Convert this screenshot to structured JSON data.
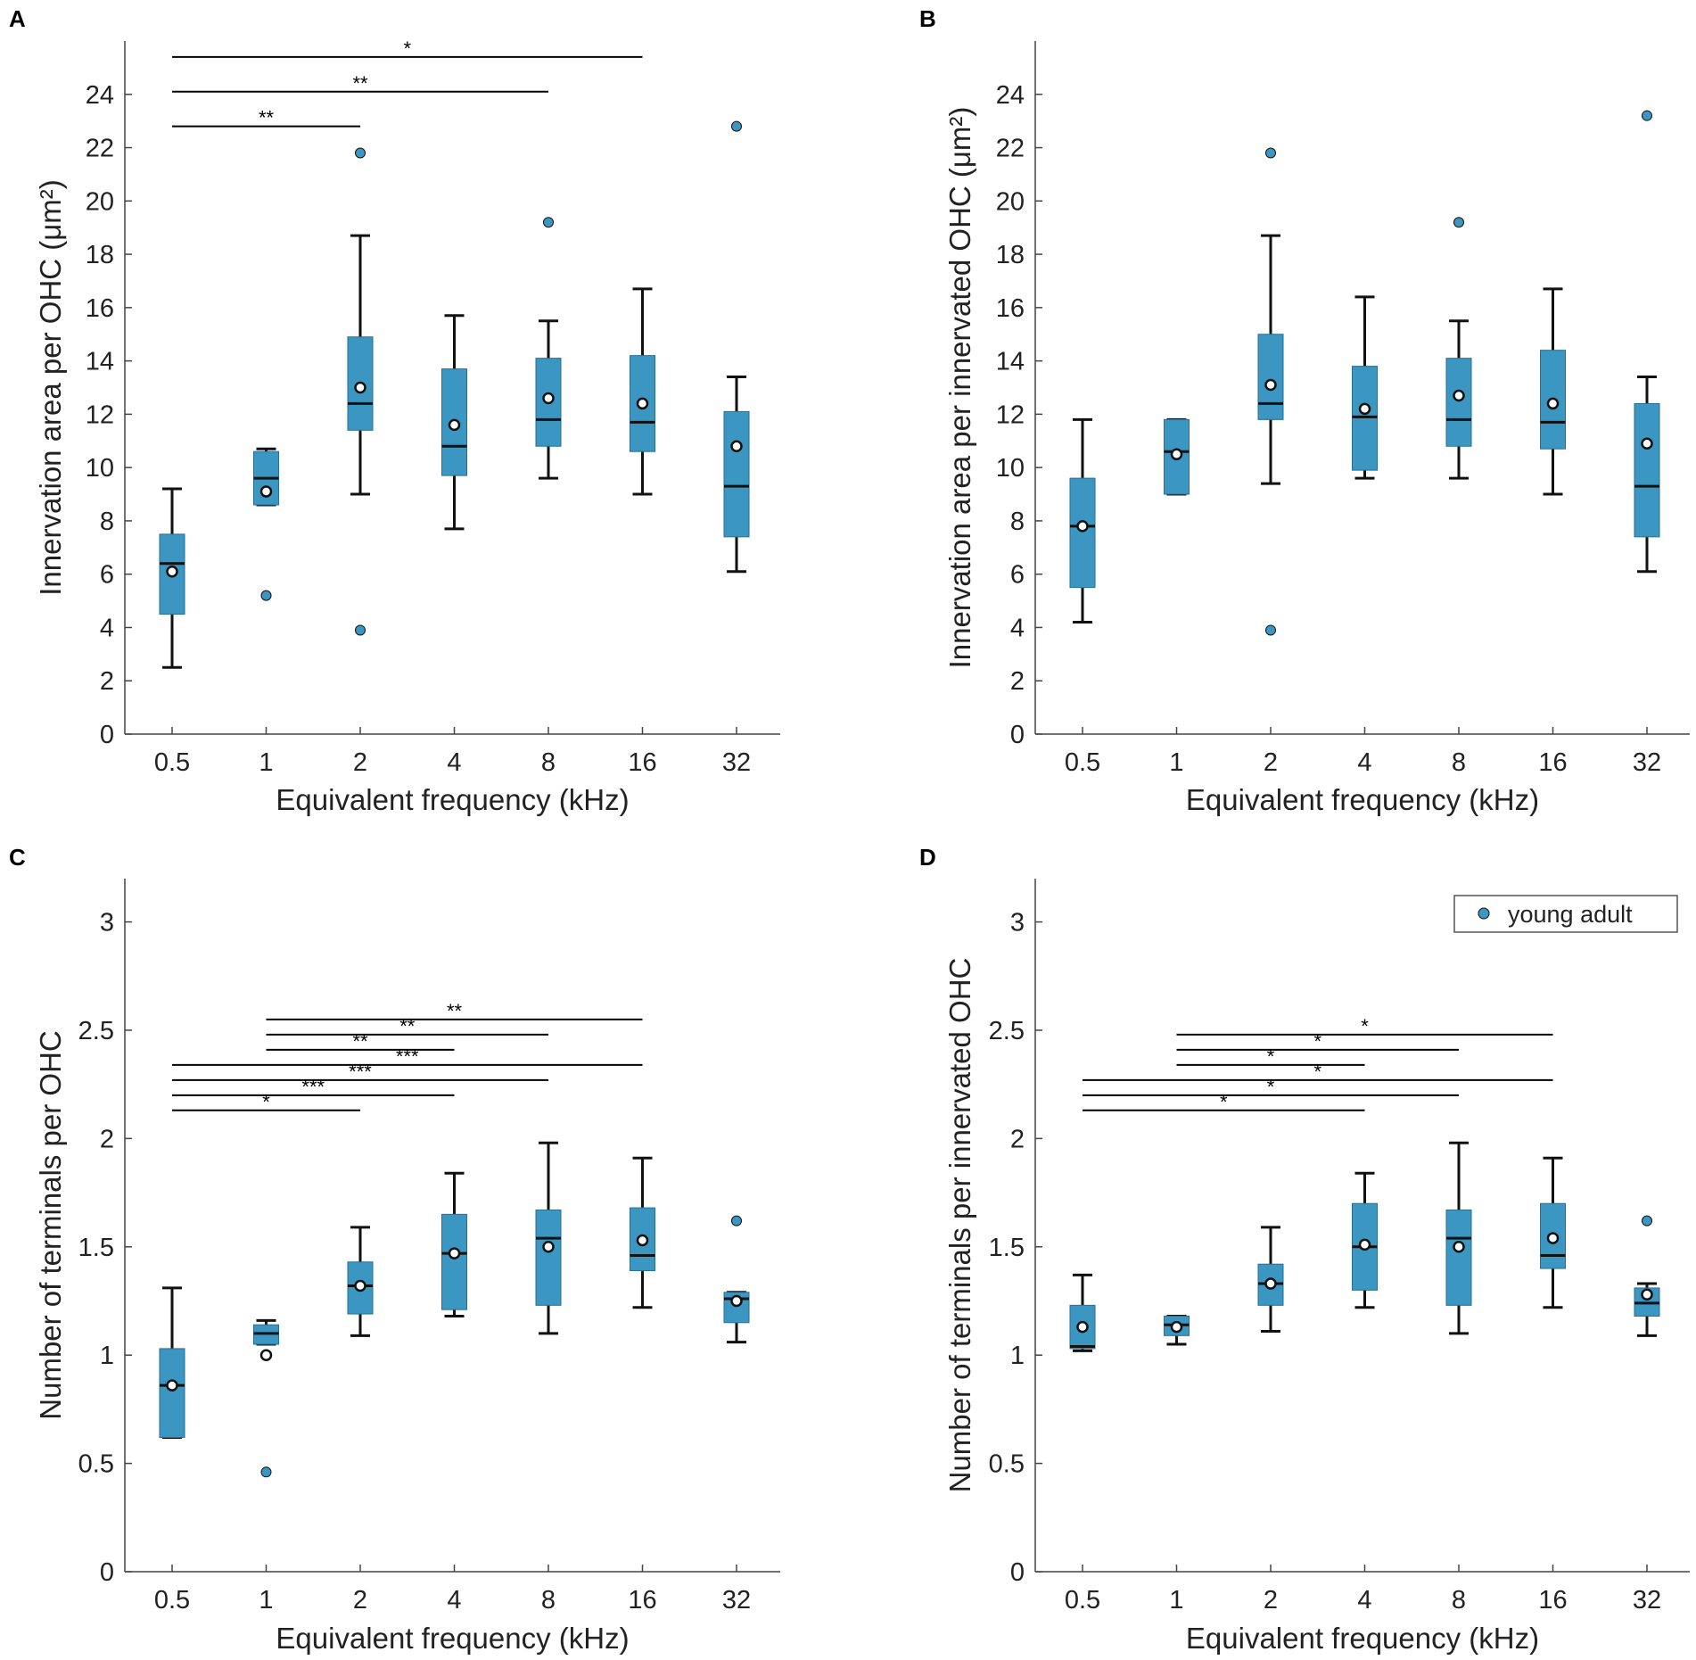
{
  "colors": {
    "box_fill": "#3b97c2",
    "outlier": "#3b97c2",
    "whisker": "#111111",
    "axis": "#444444"
  },
  "legend": {
    "label": "young adult",
    "marker": "filled-circle",
    "placement": "top-right"
  },
  "chart_data": [
    {
      "panel": "A",
      "type": "boxplot",
      "categories": [
        "0.5",
        "1",
        "2",
        "4",
        "8",
        "16",
        "32"
      ],
      "xlabel": "Equivalent frequency (kHz)",
      "ylabel": "Innervation area per OHC (μm²)",
      "ylim": [
        0,
        26
      ],
      "yticks": [
        0,
        2,
        4,
        6,
        8,
        10,
        12,
        14,
        16,
        18,
        20,
        22,
        24
      ],
      "series": [
        {
          "name": "young adult",
          "boxes": [
            {
              "category": "0.5",
              "min": 2.5,
              "q1": 4.5,
              "median": 6.4,
              "q3": 7.5,
              "max": 9.2,
              "mean": 6.1,
              "outliers": []
            },
            {
              "category": "1",
              "min": 8.6,
              "q1": 8.6,
              "median": 9.6,
              "q3": 10.6,
              "max": 10.7,
              "mean": 9.1,
              "outliers": [
                5.2
              ]
            },
            {
              "category": "2",
              "min": 9.0,
              "q1": 11.4,
              "median": 12.4,
              "q3": 14.9,
              "max": 18.7,
              "mean": 13.0,
              "outliers": [
                21.8,
                3.9
              ]
            },
            {
              "category": "4",
              "min": 7.7,
              "q1": 9.7,
              "median": 10.8,
              "q3": 13.7,
              "max": 15.7,
              "mean": 11.6,
              "outliers": []
            },
            {
              "category": "8",
              "min": 9.6,
              "q1": 10.8,
              "median": 11.8,
              "q3": 14.1,
              "max": 15.5,
              "mean": 12.6,
              "outliers": [
                19.2
              ]
            },
            {
              "category": "16",
              "min": 9.0,
              "q1": 10.6,
              "median": 11.7,
              "q3": 14.2,
              "max": 16.7,
              "mean": 12.4,
              "outliers": []
            },
            {
              "category": "32",
              "min": 6.1,
              "q1": 7.4,
              "median": 9.3,
              "q3": 12.1,
              "max": 13.4,
              "mean": 10.8,
              "outliers": [
                22.8
              ]
            }
          ]
        }
      ],
      "significance": [
        {
          "from": "0.5",
          "to": "2",
          "label": "**",
          "level": 22.8
        },
        {
          "from": "0.5",
          "to": "8",
          "label": "**",
          "level": 24.1
        },
        {
          "from": "0.5",
          "to": "16",
          "label": "*",
          "level": 25.4
        }
      ]
    },
    {
      "panel": "B",
      "type": "boxplot",
      "categories": [
        "0.5",
        "1",
        "2",
        "4",
        "8",
        "16",
        "32"
      ],
      "xlabel": "Equivalent frequency (kHz)",
      "ylabel": "Innervation area per innervated OHC (μm²)",
      "ylim": [
        0,
        26
      ],
      "yticks": [
        0,
        2,
        4,
        6,
        8,
        10,
        12,
        14,
        16,
        18,
        20,
        22,
        24
      ],
      "series": [
        {
          "name": "young adult",
          "boxes": [
            {
              "category": "0.5",
              "min": 4.2,
              "q1": 5.5,
              "median": 7.8,
              "q3": 9.6,
              "max": 11.8,
              "mean": 7.8,
              "outliers": []
            },
            {
              "category": "1",
              "min": 9.0,
              "q1": 9.0,
              "median": 10.6,
              "q3": 11.8,
              "max": 11.8,
              "mean": 10.5,
              "outliers": []
            },
            {
              "category": "2",
              "min": 9.4,
              "q1": 11.8,
              "median": 12.4,
              "q3": 15.0,
              "max": 18.7,
              "mean": 13.1,
              "outliers": [
                21.8,
                3.9
              ]
            },
            {
              "category": "4",
              "min": 9.6,
              "q1": 9.9,
              "median": 11.9,
              "q3": 13.8,
              "max": 16.4,
              "mean": 12.2,
              "outliers": []
            },
            {
              "category": "8",
              "min": 9.6,
              "q1": 10.8,
              "median": 11.8,
              "q3": 14.1,
              "max": 15.5,
              "mean": 12.7,
              "outliers": [
                19.2
              ]
            },
            {
              "category": "16",
              "min": 9.0,
              "q1": 10.7,
              "median": 11.7,
              "q3": 14.4,
              "max": 16.7,
              "mean": 12.4,
              "outliers": []
            },
            {
              "category": "32",
              "min": 6.1,
              "q1": 7.4,
              "median": 9.3,
              "q3": 12.4,
              "max": 13.4,
              "mean": 10.9,
              "outliers": [
                23.2
              ]
            }
          ]
        }
      ],
      "significance": []
    },
    {
      "panel": "C",
      "type": "boxplot",
      "categories": [
        "0.5",
        "1",
        "2",
        "4",
        "8",
        "16",
        "32"
      ],
      "xlabel": "Equivalent frequency (kHz)",
      "ylabel": "Number of terminals per OHC",
      "ylim": [
        0,
        3.2
      ],
      "yticks": [
        0,
        0.5,
        1,
        1.5,
        2,
        2.5,
        3
      ],
      "series": [
        {
          "name": "young adult",
          "boxes": [
            {
              "category": "0.5",
              "min": 0.62,
              "q1": 0.62,
              "median": 0.86,
              "q3": 1.03,
              "max": 1.31,
              "mean": 0.86,
              "outliers": []
            },
            {
              "category": "1",
              "min": 1.05,
              "q1": 1.05,
              "median": 1.1,
              "q3": 1.14,
              "max": 1.16,
              "mean": 1.0,
              "outliers": [
                0.46
              ]
            },
            {
              "category": "2",
              "min": 1.09,
              "q1": 1.19,
              "median": 1.32,
              "q3": 1.43,
              "max": 1.59,
              "mean": 1.32,
              "outliers": []
            },
            {
              "category": "4",
              "min": 1.18,
              "q1": 1.21,
              "median": 1.47,
              "q3": 1.65,
              "max": 1.84,
              "mean": 1.47,
              "outliers": []
            },
            {
              "category": "8",
              "min": 1.1,
              "q1": 1.23,
              "median": 1.54,
              "q3": 1.67,
              "max": 1.98,
              "mean": 1.5,
              "outliers": []
            },
            {
              "category": "16",
              "min": 1.22,
              "q1": 1.39,
              "median": 1.46,
              "q3": 1.68,
              "max": 1.91,
              "mean": 1.53,
              "outliers": []
            },
            {
              "category": "32",
              "min": 1.06,
              "q1": 1.15,
              "median": 1.26,
              "q3": 1.29,
              "max": 1.29,
              "mean": 1.25,
              "outliers": [
                1.62
              ]
            }
          ]
        }
      ],
      "significance": [
        {
          "from": "0.5",
          "to": "2",
          "label": "*",
          "level": 2.13
        },
        {
          "from": "0.5",
          "to": "4",
          "label": "***",
          "level": 2.2
        },
        {
          "from": "0.5",
          "to": "8",
          "label": "***",
          "level": 2.27
        },
        {
          "from": "0.5",
          "to": "16",
          "label": "***",
          "level": 2.34
        },
        {
          "from": "1",
          "to": "4",
          "label": "**",
          "level": 2.41
        },
        {
          "from": "1",
          "to": "8",
          "label": "**",
          "level": 2.48
        },
        {
          "from": "1",
          "to": "16",
          "label": "**",
          "level": 2.55
        }
      ]
    },
    {
      "panel": "D",
      "type": "boxplot",
      "categories": [
        "0.5",
        "1",
        "2",
        "4",
        "8",
        "16",
        "32"
      ],
      "xlabel": "Equivalent frequency (kHz)",
      "ylabel": "Number of terminals per innervated OHC",
      "ylim": [
        0,
        3.2
      ],
      "yticks": [
        0,
        0.5,
        1,
        1.5,
        2,
        2.5,
        3
      ],
      "series": [
        {
          "name": "young adult",
          "boxes": [
            {
              "category": "0.5",
              "min": 1.02,
              "q1": 1.03,
              "median": 1.04,
              "q3": 1.23,
              "max": 1.37,
              "mean": 1.13,
              "outliers": []
            },
            {
              "category": "1",
              "min": 1.05,
              "q1": 1.09,
              "median": 1.14,
              "q3": 1.18,
              "max": 1.18,
              "mean": 1.13,
              "outliers": []
            },
            {
              "category": "2",
              "min": 1.11,
              "q1": 1.23,
              "median": 1.33,
              "q3": 1.42,
              "max": 1.59,
              "mean": 1.33,
              "outliers": []
            },
            {
              "category": "4",
              "min": 1.22,
              "q1": 1.3,
              "median": 1.5,
              "q3": 1.7,
              "max": 1.84,
              "mean": 1.51,
              "outliers": []
            },
            {
              "category": "8",
              "min": 1.1,
              "q1": 1.23,
              "median": 1.54,
              "q3": 1.67,
              "max": 1.98,
              "mean": 1.5,
              "outliers": []
            },
            {
              "category": "16",
              "min": 1.22,
              "q1": 1.4,
              "median": 1.46,
              "q3": 1.7,
              "max": 1.91,
              "mean": 1.54,
              "outliers": []
            },
            {
              "category": "32",
              "min": 1.09,
              "q1": 1.18,
              "median": 1.24,
              "q3": 1.31,
              "max": 1.33,
              "mean": 1.28,
              "outliers": [
                1.62
              ]
            }
          ]
        }
      ],
      "significance": [
        {
          "from": "0.5",
          "to": "4",
          "label": "*",
          "level": 2.13
        },
        {
          "from": "0.5",
          "to": "8",
          "label": "*",
          "level": 2.2
        },
        {
          "from": "0.5",
          "to": "16",
          "label": "*",
          "level": 2.27
        },
        {
          "from": "1",
          "to": "4",
          "label": "*",
          "level": 2.34
        },
        {
          "from": "1",
          "to": "8",
          "label": "*",
          "level": 2.41
        },
        {
          "from": "1",
          "to": "16",
          "label": "*",
          "level": 2.48
        }
      ]
    }
  ]
}
